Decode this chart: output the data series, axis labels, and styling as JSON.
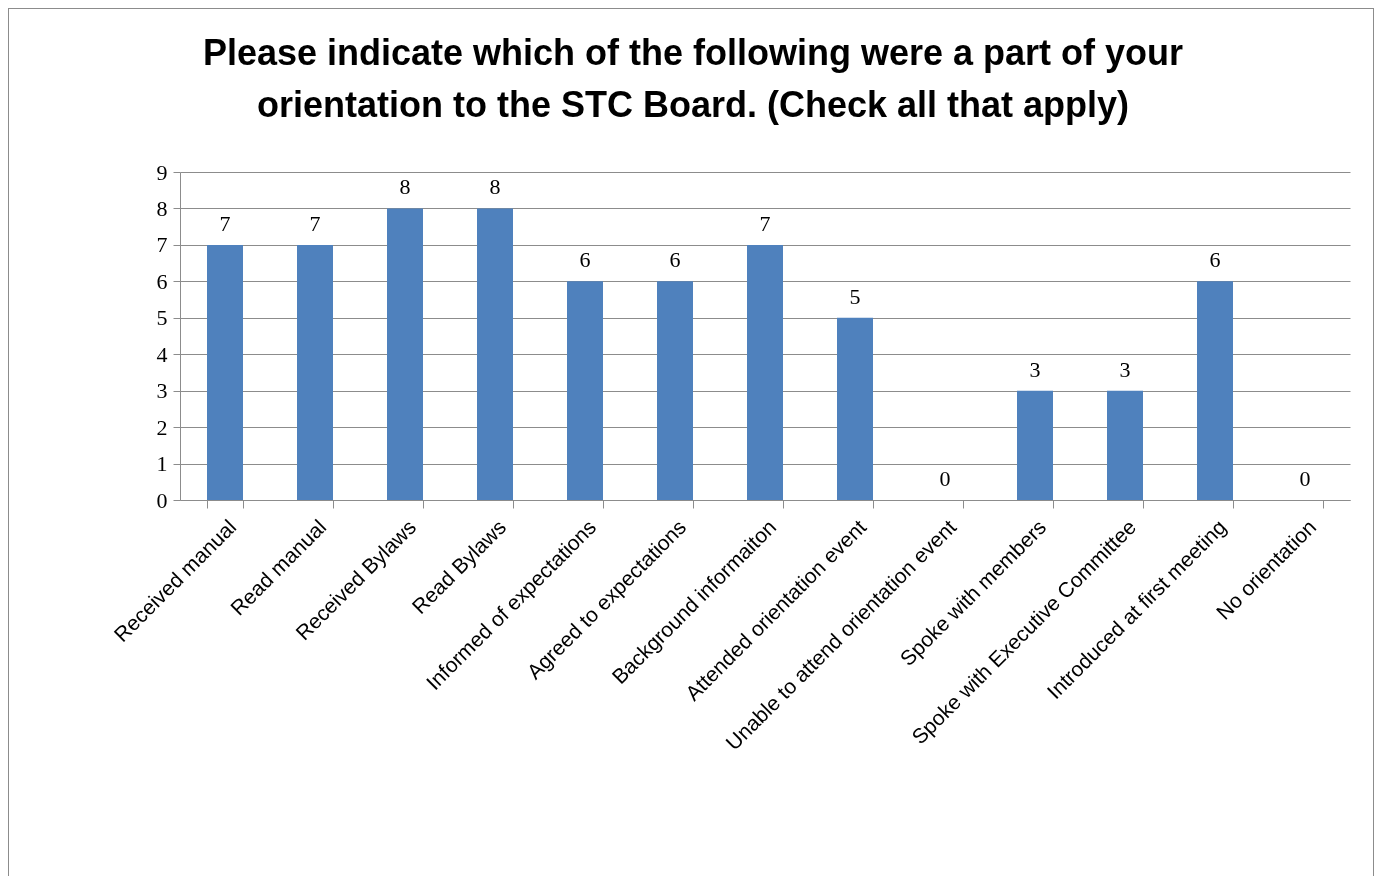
{
  "chart_data": {
    "type": "bar",
    "title": "Please indicate which of the following were a part of your orientation to the STC Board. (Check all that apply)",
    "categories": [
      "Received manual",
      "Read manual",
      "Received Bylaws",
      "Read Bylaws",
      "Informed of expectations",
      "Agreed to expectations",
      "Background informaiton",
      "Attended orientation event",
      "Unable to attend orientation event",
      "Spoke with members",
      "Spoke with Executive Committee",
      "Introduced at first meeting",
      "No orientation"
    ],
    "values": [
      7,
      7,
      8,
      8,
      6,
      6,
      7,
      5,
      0,
      3,
      3,
      6,
      0
    ],
    "color": "#4f81bd",
    "ylim": [
      0,
      9
    ],
    "yticks": [
      0,
      1,
      2,
      3,
      4,
      5,
      6,
      7,
      8,
      9
    ],
    "grid": "y",
    "data_labels": true
  }
}
